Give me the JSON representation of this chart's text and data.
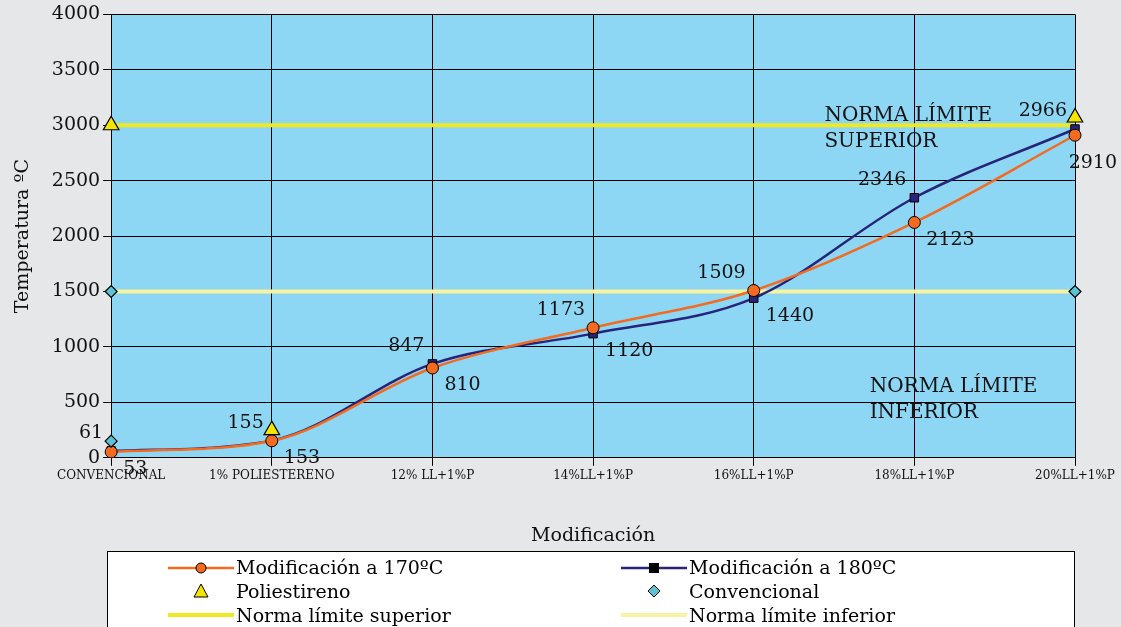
{
  "chart_data": {
    "type": "line",
    "xlabel": "Modificación",
    "ylabel": "Temperatura ºC",
    "categories": [
      "CONVENCIONAL",
      "1% POLIESTERENO",
      "12% LL+1%P",
      "14%LL+1%P",
      "16%LL+1%P",
      "18%LL+1%P",
      "20%LL+1%P"
    ],
    "ylim": [
      0,
      4000
    ],
    "yticks": [
      0,
      500,
      1000,
      1500,
      2000,
      2500,
      3000,
      3500,
      4000
    ],
    "grid": true,
    "legend": "bottom",
    "series": [
      {
        "name": "Modificación a 170ºC",
        "color": "#f26b21",
        "marker": "circle",
        "values": [
          53,
          153,
          810,
          1173,
          1509,
          2123,
          2910
        ],
        "value_labels": [
          "53",
          "153",
          "810",
          "1173",
          "1509",
          "2123",
          "2910"
        ]
      },
      {
        "name": "Modificación a 180ºC",
        "color": "#27247a",
        "marker": "square",
        "values": [
          61,
          155,
          847,
          1120,
          1440,
          2346,
          2966
        ],
        "value_labels": [
          "61",
          "155",
          "847",
          "1120",
          "1440",
          "2346",
          "2966"
        ]
      },
      {
        "name": "Poliestireno",
        "type": "scatter",
        "color": "#f5e400",
        "marker": "triangle",
        "x": [
          "CONVENCIONAL",
          "1% POLIESTERENO",
          "20%LL+1%P"
        ],
        "values": [
          3000,
          250,
          3070
        ]
      },
      {
        "name": "Convencional",
        "type": "scatter",
        "color": "#5bc4d4",
        "marker": "diamond",
        "x": [
          "CONVENCIONAL",
          "CONVENCIONAL",
          "20%LL+1%P"
        ],
        "values": [
          150,
          1500,
          1500
        ]
      }
    ],
    "ref_lines": [
      {
        "axis": "y",
        "value": 3000,
        "label": "Norma límite superior",
        "color": "#f0e820"
      },
      {
        "axis": "y",
        "value": 1500,
        "label": "Norma límite inferior",
        "color": "#f8f3a0"
      }
    ],
    "annotations": [
      "NORMA LÍMITE SUPERIOR",
      "NORMA LÍMITE INFERIOR"
    ]
  }
}
